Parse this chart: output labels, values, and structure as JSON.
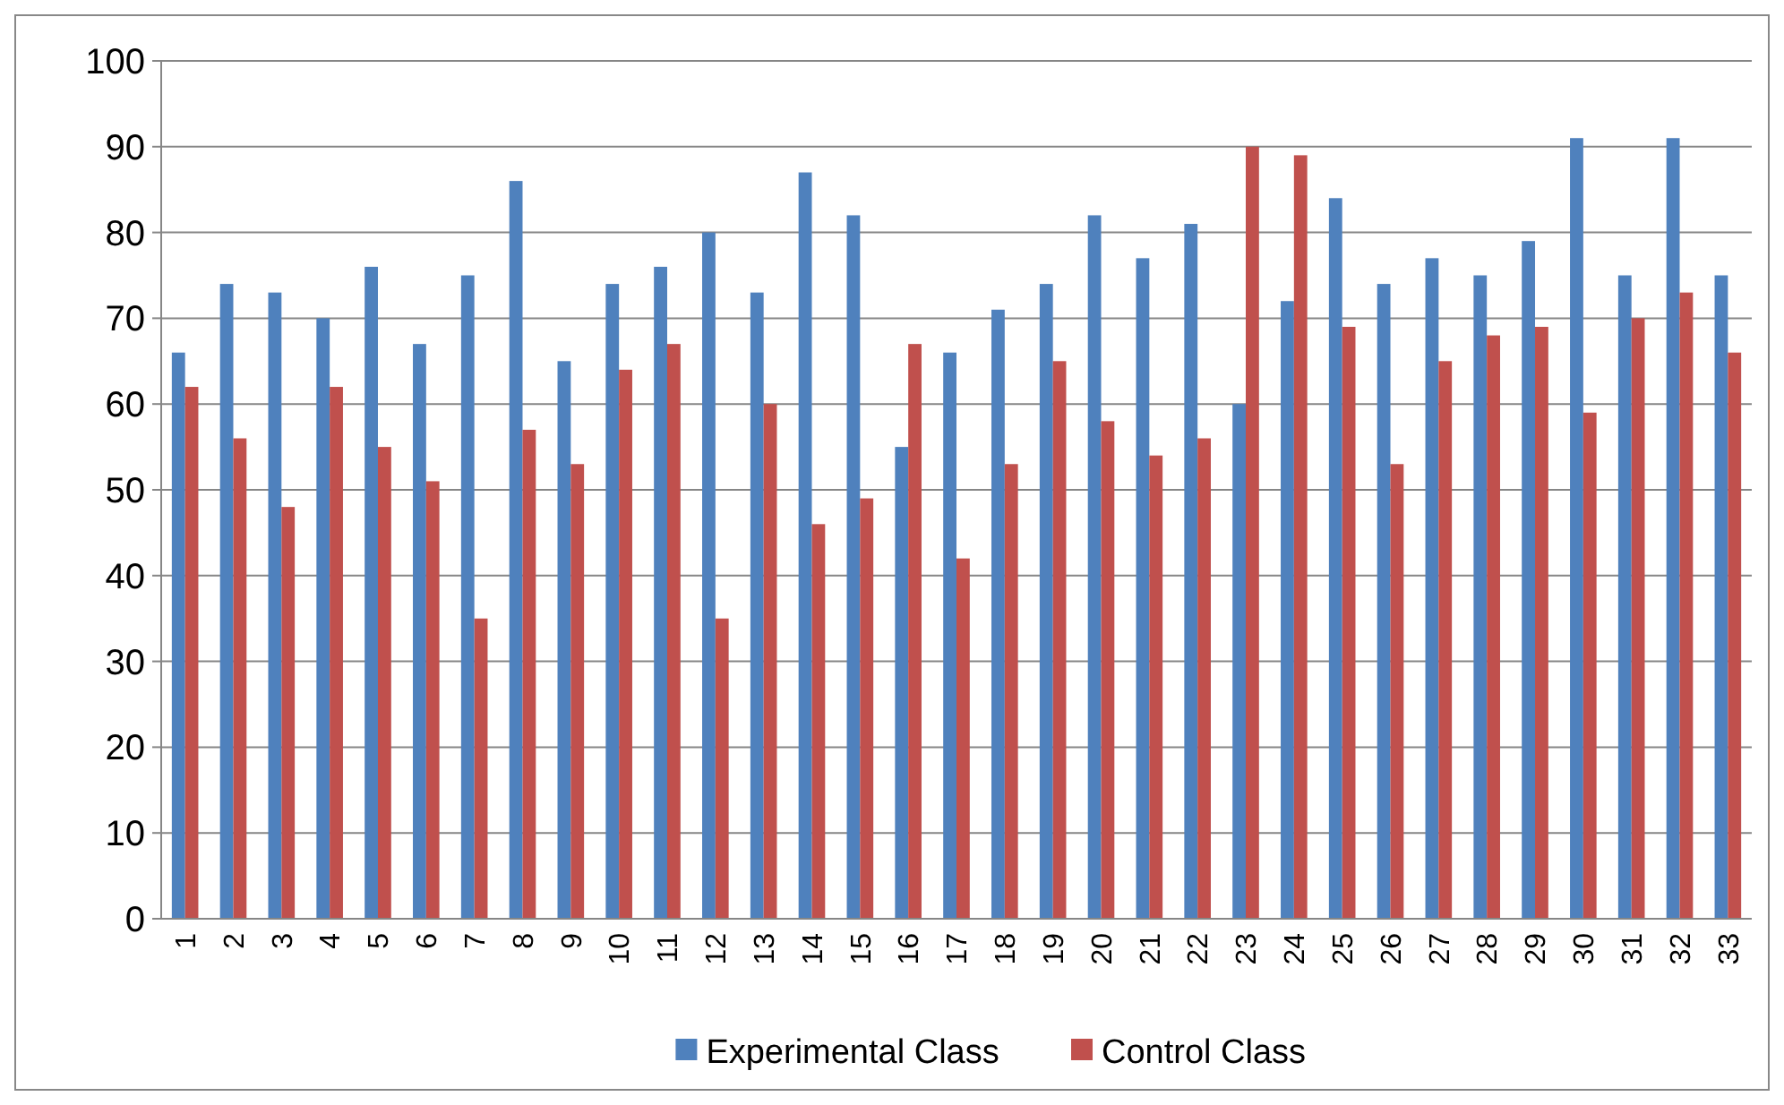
{
  "chart_data": {
    "type": "bar",
    "categories": [
      "1",
      "2",
      "3",
      "4",
      "5",
      "6",
      "7",
      "8",
      "9",
      "10",
      "11",
      "12",
      "13",
      "14",
      "15",
      "16",
      "17",
      "18",
      "19",
      "20",
      "21",
      "22",
      "23",
      "24",
      "25",
      "26",
      "27",
      "28",
      "29",
      "30",
      "31",
      "32",
      "33"
    ],
    "series": [
      {
        "name": "Experimental Class",
        "color": "#4f81bd",
        "values": [
          66,
          74,
          73,
          70,
          76,
          67,
          75,
          86,
          65,
          74,
          76,
          80,
          73,
          87,
          82,
          55,
          66,
          71,
          74,
          82,
          77,
          81,
          60,
          72,
          84,
          74,
          77,
          75,
          79,
          91,
          75,
          91,
          75
        ]
      },
      {
        "name": "Control Class",
        "color": "#c0504d",
        "values": [
          62,
          56,
          48,
          62,
          55,
          51,
          35,
          57,
          53,
          64,
          67,
          35,
          60,
          46,
          49,
          67,
          42,
          53,
          65,
          58,
          54,
          56,
          90,
          89,
          69,
          53,
          65,
          68,
          69,
          59,
          70,
          73,
          66
        ]
      }
    ],
    "ylim": [
      0,
      100
    ],
    "yticks": [
      0,
      10,
      20,
      30,
      40,
      50,
      60,
      70,
      80,
      90,
      100
    ],
    "grid": "y",
    "legend": "bottom"
  }
}
